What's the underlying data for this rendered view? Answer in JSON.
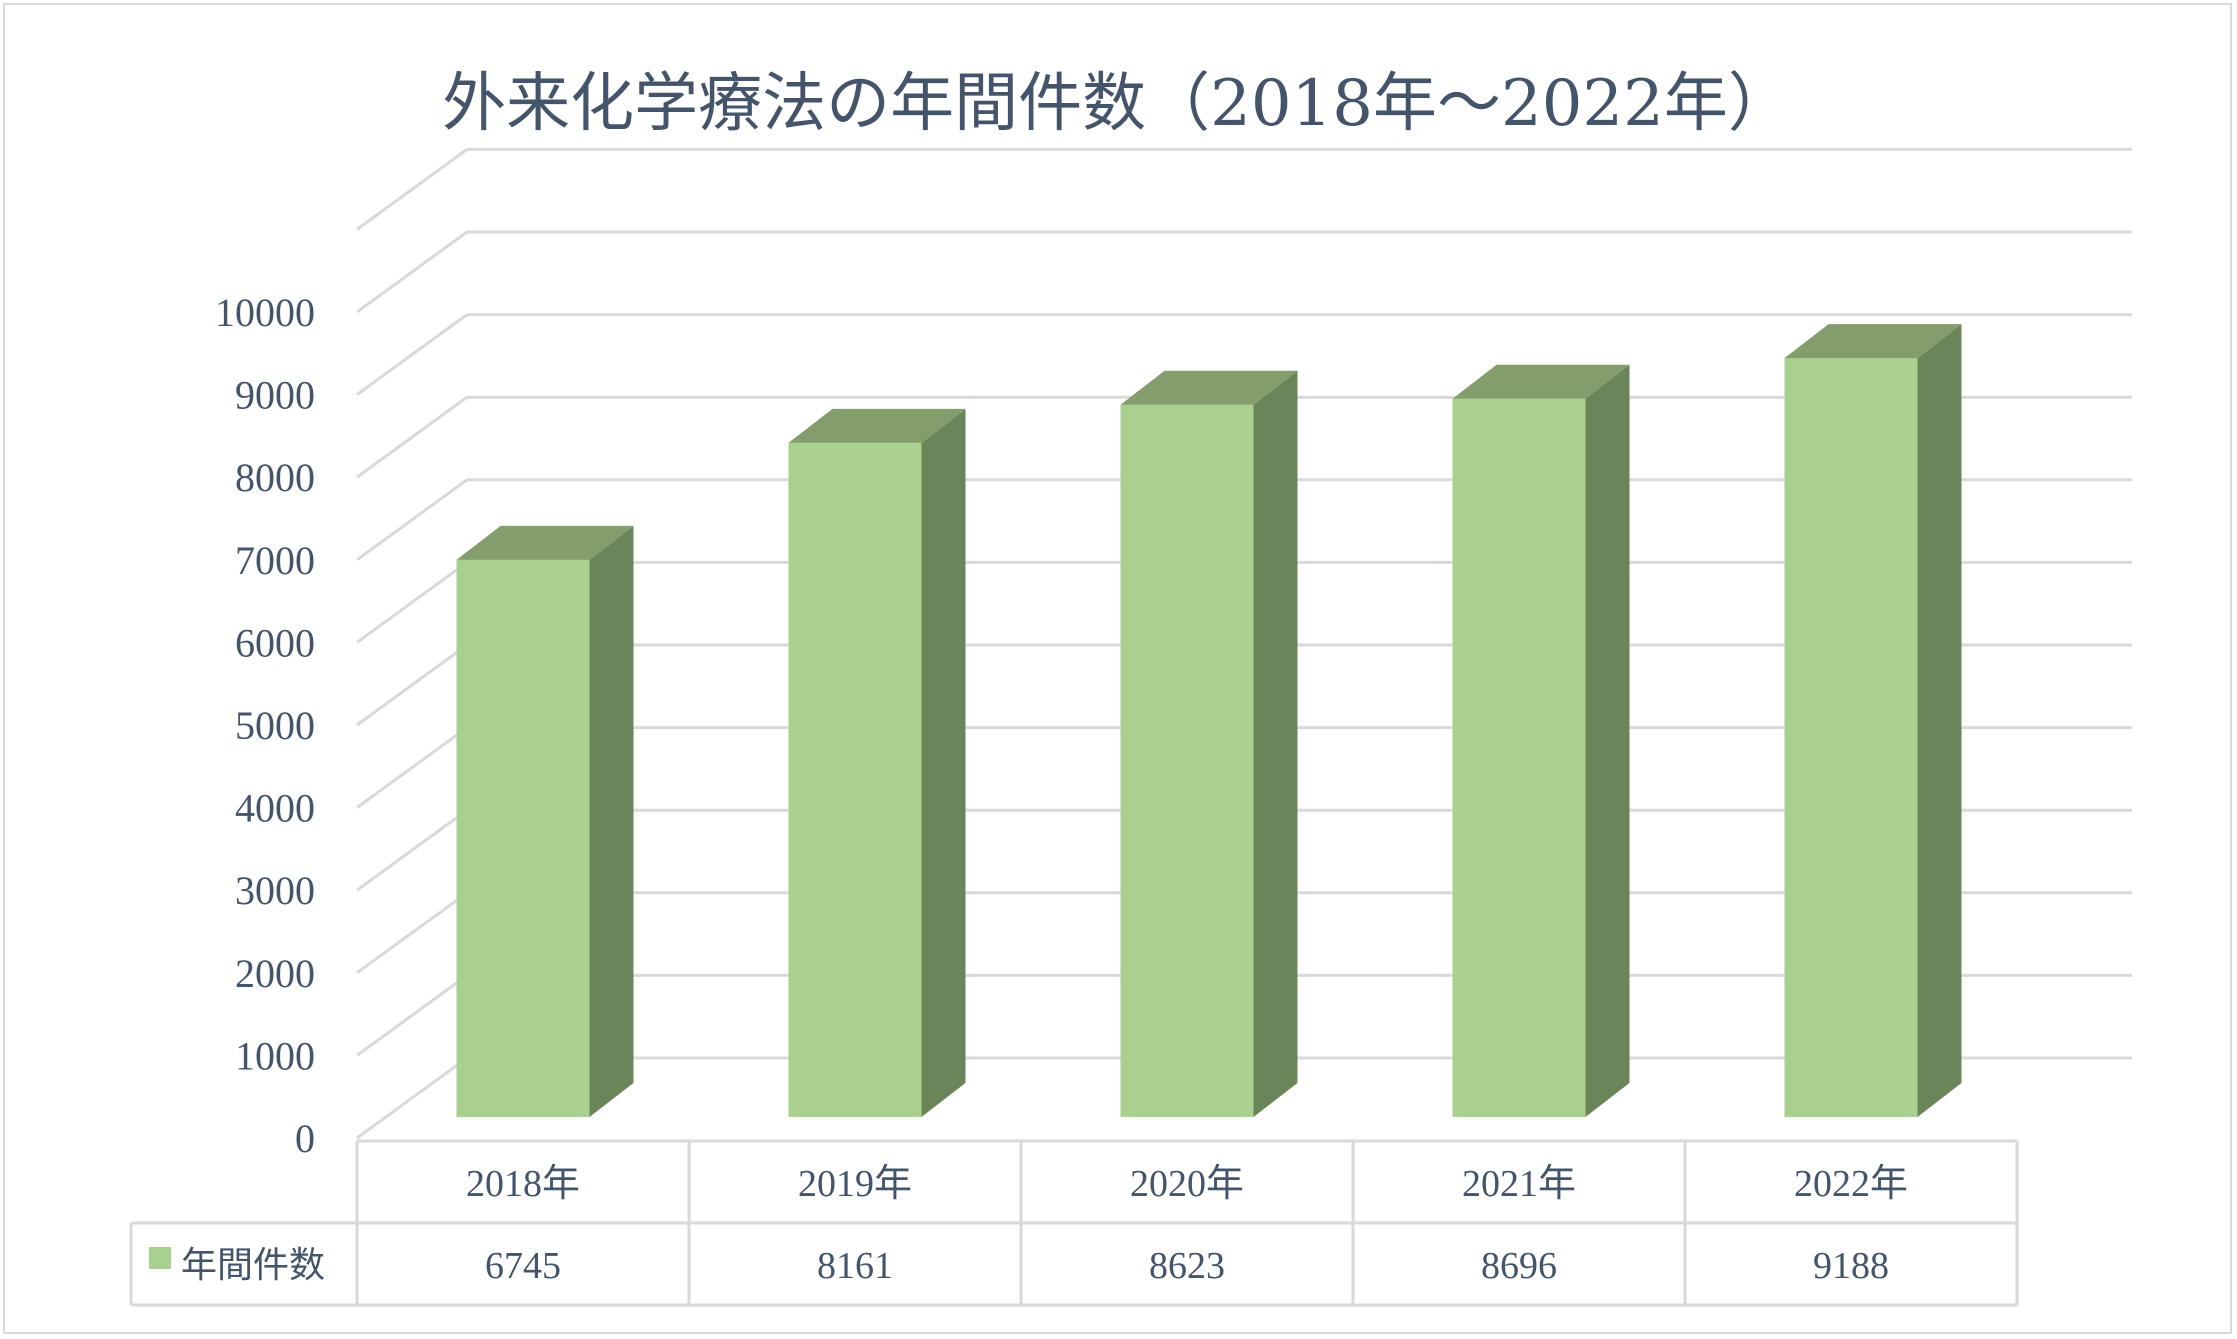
{
  "chart_data": {
    "type": "bar",
    "title": "外来化学療法の年間件数（2018年～2022年）",
    "categories": [
      "2018年",
      "2019年",
      "2020年",
      "2021年",
      "2022年"
    ],
    "series": [
      {
        "name": "年間件数",
        "values": [
          6745,
          8161,
          8623,
          8696,
          9188
        ]
      }
    ],
    "y_ticks": [
      "0",
      "1000",
      "2000",
      "3000",
      "4000",
      "5000",
      "6000",
      "7000",
      "8000",
      "9000",
      "10000"
    ],
    "ylim": [
      0,
      11000
    ],
    "grid": true,
    "three_d": true,
    "data_table": true,
    "colors": {
      "bar_front": "#a9d08e",
      "bar_top": "#839e6c",
      "bar_side": "#6b855a",
      "grid": "#d9d9d9",
      "text": "#44546a",
      "legend_key": "#a9d08e"
    }
  }
}
